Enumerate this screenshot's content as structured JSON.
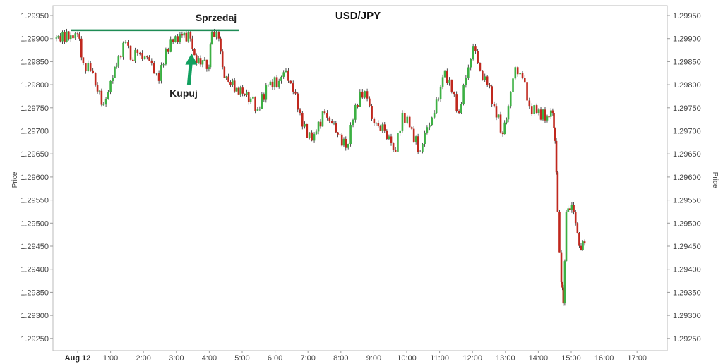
{
  "chart_data": {
    "type": "line",
    "style": "candlestick-like",
    "title": "USD/JPY",
    "xlabel": "",
    "ylabel": "Price",
    "ylabel_right": "Price",
    "ylim": [
      1.2922,
      1.29972
    ],
    "xlim": [
      -0.75,
      18.2
    ],
    "yticks": [
      "1.29950",
      "1.29900",
      "1.29850",
      "1.29800",
      "1.29750",
      "1.29700",
      "1.29650",
      "1.29600",
      "1.29550",
      "1.29500",
      "1.29450",
      "1.29400",
      "1.29350",
      "1.29300",
      "1.29250"
    ],
    "xticks": [
      "Aug 12",
      "1:00",
      "2:00",
      "3:00",
      "4:00",
      "5:00",
      "6:00",
      "7:00",
      "8:00",
      "9:00",
      "10:00",
      "11:00",
      "12:00",
      "13:00",
      "14:00",
      "15:00",
      "16:00",
      "17:00"
    ],
    "xtick_hours": [
      0,
      1,
      2,
      3,
      4,
      5,
      6,
      7,
      8,
      9,
      10,
      11,
      12,
      13,
      14,
      15,
      16,
      17
    ],
    "grid": false,
    "colors": {
      "up": "#3cb043",
      "down": "#c0281e",
      "annotation": "#1e8c55",
      "arrow": "#12a060"
    },
    "series": [
      {
        "hours": [
          -0.71,
          -0.21,
          0,
          0.17,
          0.39,
          0.54,
          0.79,
          1.07,
          1.24,
          1.46,
          1.61,
          1.82,
          2.04,
          2.25,
          2.47,
          2.68,
          2.9,
          3.11,
          3.43,
          3.61,
          3.86,
          3.99,
          4.08,
          4.29,
          4.46,
          4.83,
          5.26,
          5.47,
          5.79,
          6.12,
          6.33,
          6.55,
          6.76,
          6.97,
          7.19,
          7.51,
          7.73,
          8.15,
          8.37,
          8.58,
          8.8,
          9.01,
          9.33,
          9.66,
          9.87,
          10.09,
          10.41,
          10.62,
          10.84,
          11.16,
          11.37,
          11.59,
          11.8,
          12.02,
          12.23,
          12.45,
          12.66,
          12.92,
          13.09,
          13.3,
          13.52,
          13.73,
          13.95,
          14.27,
          14.44,
          14.51,
          14.59,
          14.7,
          14.76,
          14.85,
          15.02,
          15.19,
          15.3,
          15.41
        ],
        "values": [
          1.299,
          1.29907,
          1.2991,
          1.29846,
          1.29831,
          1.298,
          1.29757,
          1.29815,
          1.29861,
          1.29892,
          1.29854,
          1.29869,
          1.29861,
          1.29846,
          1.29808,
          1.29877,
          1.29892,
          1.2991,
          1.299,
          1.29846,
          1.29854,
          1.29838,
          1.29915,
          1.299,
          1.29815,
          1.29793,
          1.2977,
          1.29747,
          1.298,
          1.29808,
          1.29831,
          1.29785,
          1.29739,
          1.29685,
          1.29693,
          1.29739,
          1.29716,
          1.29663,
          1.29724,
          1.29785,
          1.2977,
          1.29716,
          1.29701,
          1.29655,
          1.29739,
          1.29708,
          1.29655,
          1.29708,
          1.29739,
          1.29831,
          1.29785,
          1.29739,
          1.29815,
          1.29884,
          1.29831,
          1.298,
          1.29754,
          1.29693,
          1.29754,
          1.29838,
          1.29815,
          1.29754,
          1.29739,
          1.29731,
          1.29739,
          1.29678,
          1.29525,
          1.29372,
          1.29326,
          1.29525,
          1.2954,
          1.29479,
          1.29441,
          1.29456
        ]
      }
    ],
    "annotations": [
      {
        "type": "hline",
        "label": "Sprzedaj",
        "price": 1.29918,
        "from_hour": -0.21,
        "to_hour": 4.9
      },
      {
        "type": "arrow-up",
        "label": "Kupuj",
        "hour": 3.42,
        "price_from": 1.298,
        "price_to": 1.29868
      }
    ]
  }
}
